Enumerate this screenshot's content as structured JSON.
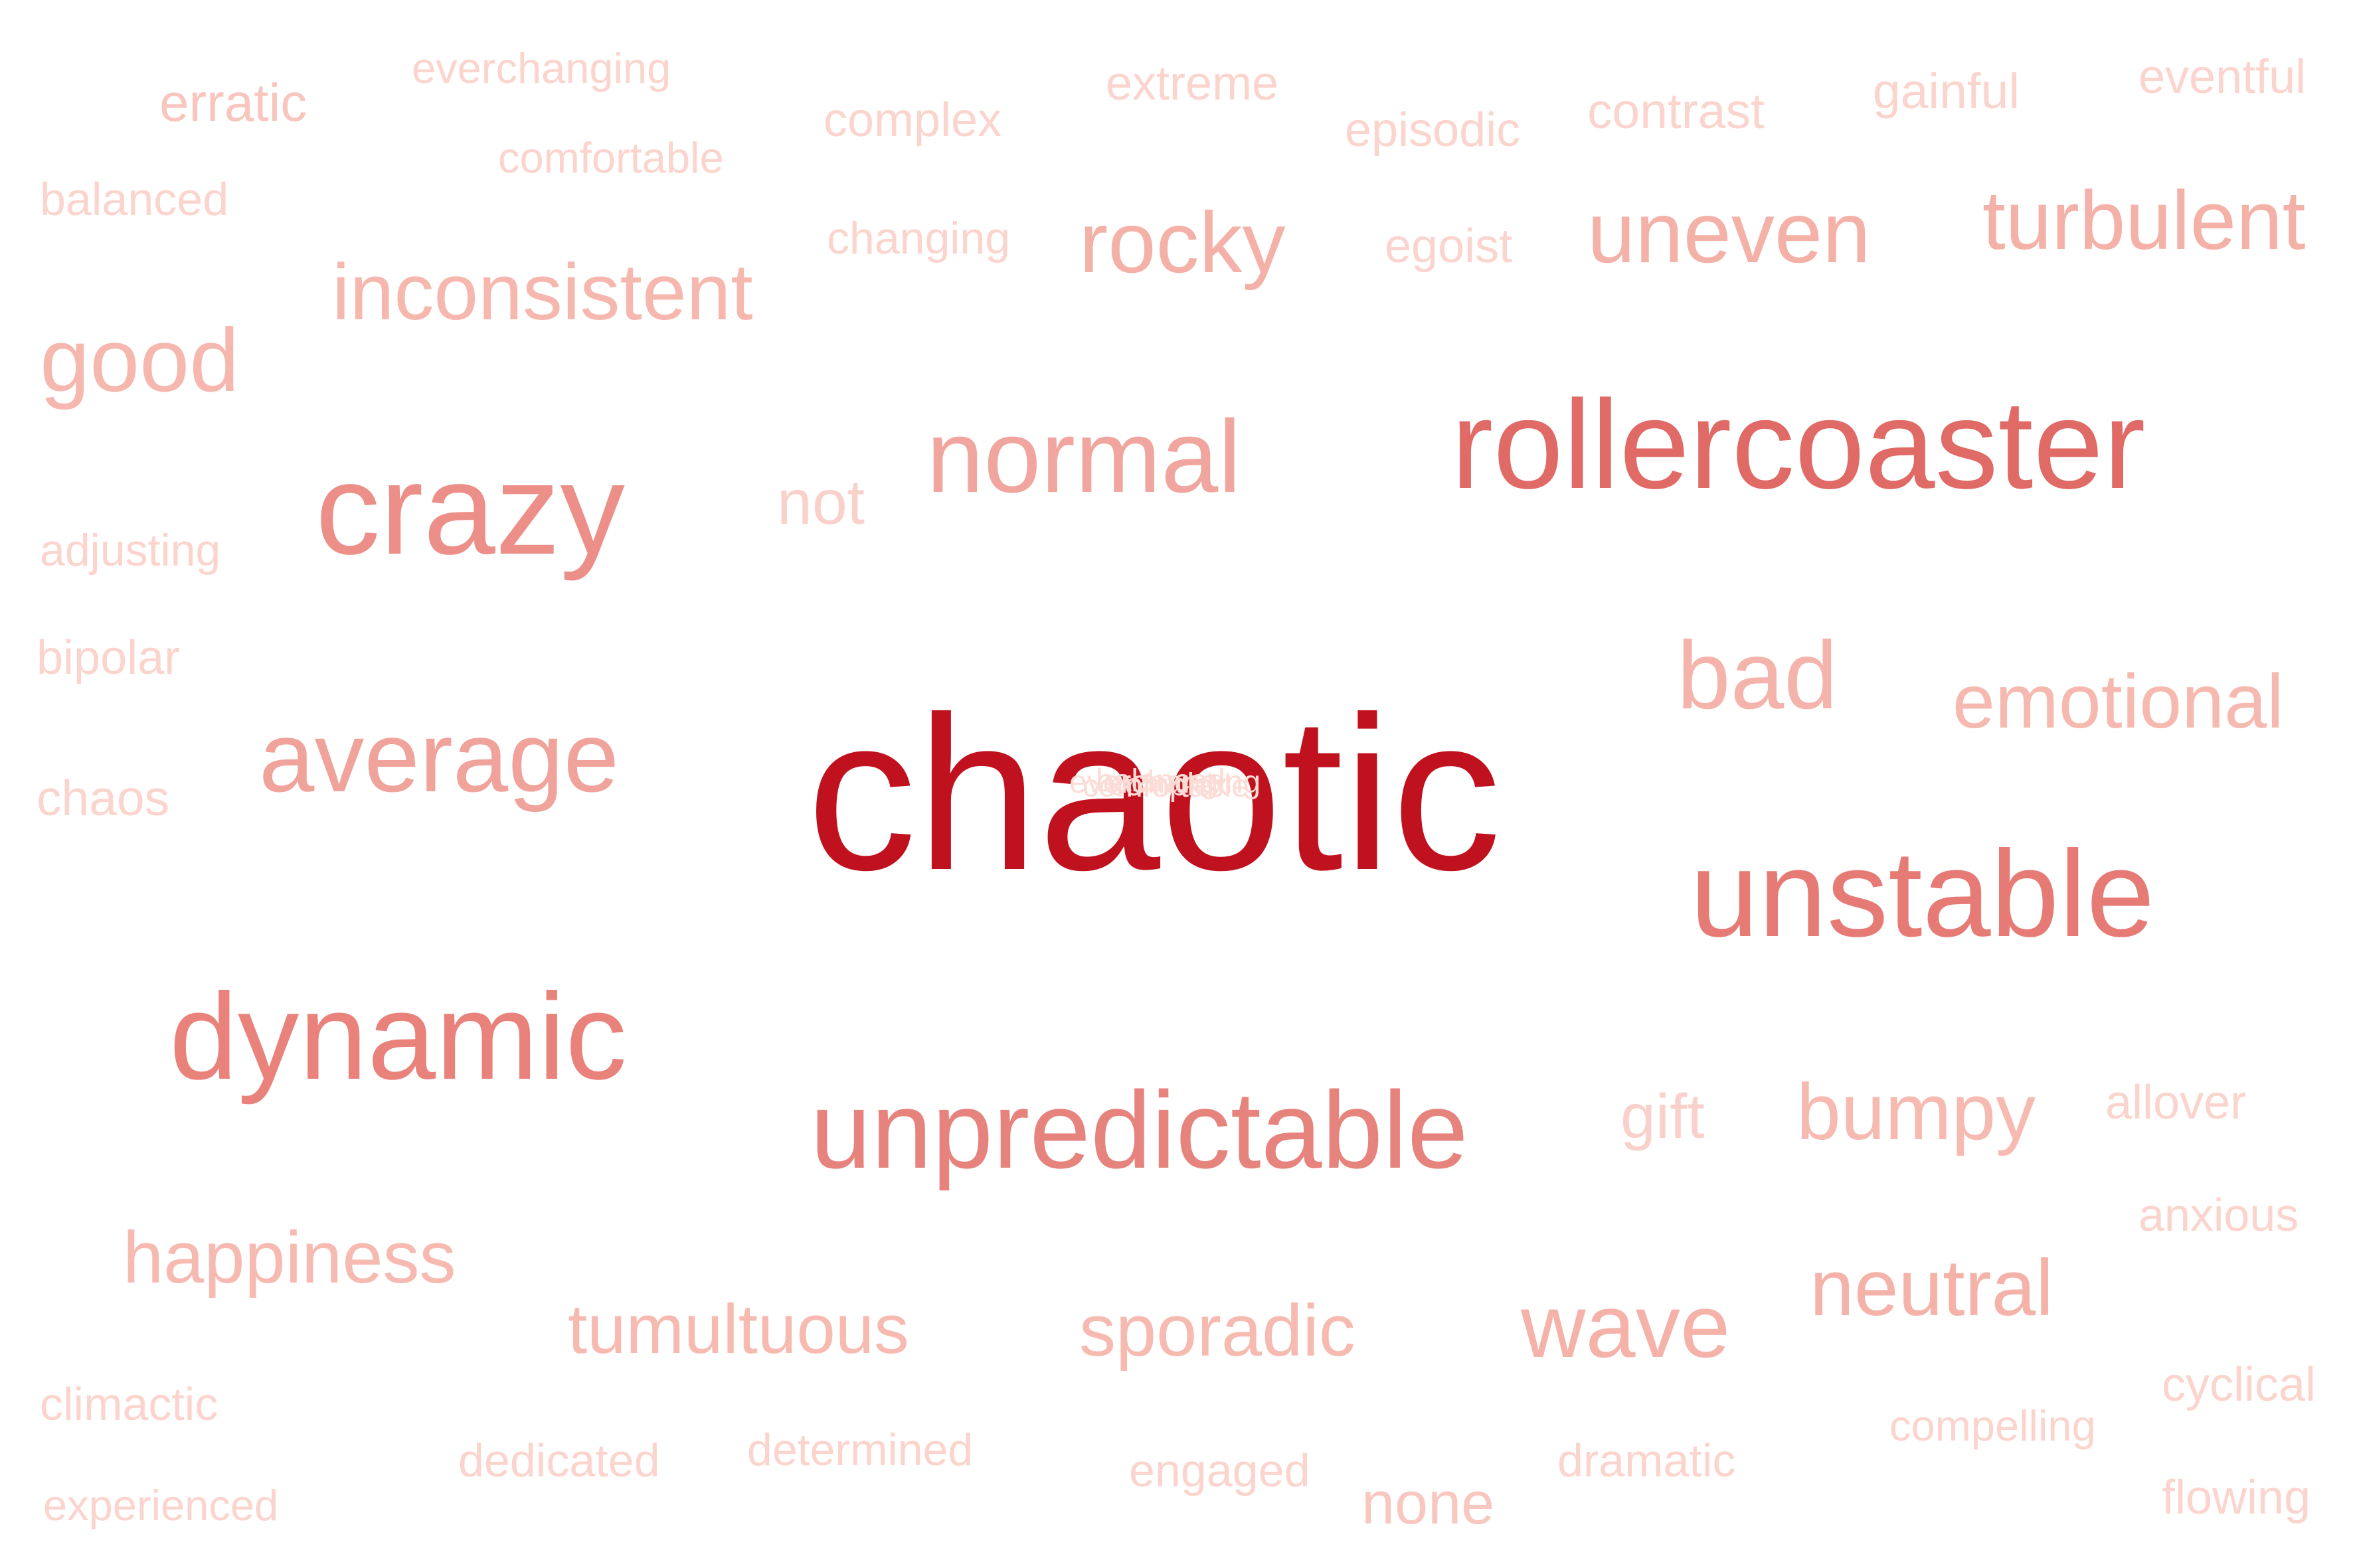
{
  "word_cloud": {
    "words": [
      {
        "id": "chaotic",
        "text": "chaotic",
        "color": "#c0121e"
      },
      {
        "id": "rollercoaster",
        "text": "rollercoaster",
        "color": "#e06a66"
      },
      {
        "id": "unstable",
        "text": "unstable",
        "color": "#e67b76"
      },
      {
        "id": "crazy",
        "text": "crazy",
        "color": "#ec8f88"
      },
      {
        "id": "dynamic",
        "text": "dynamic",
        "color": "#e8827b"
      },
      {
        "id": "unpredictable",
        "text": "unpredictable",
        "color": "#e6837d"
      },
      {
        "id": "normal",
        "text": "normal",
        "color": "#f0a69e"
      },
      {
        "id": "average",
        "text": "average",
        "color": "#f0a39b"
      },
      {
        "id": "bad",
        "text": "bad",
        "color": "#f5b4ab"
      },
      {
        "id": "emotional",
        "text": "emotional",
        "color": "#f6b9b0"
      },
      {
        "id": "uneven",
        "text": "uneven",
        "color": "#f4b1a8"
      },
      {
        "id": "turbulent",
        "text": "turbulent",
        "color": "#f4b1a8"
      },
      {
        "id": "rocky",
        "text": "rocky",
        "color": "#f4b1a8"
      },
      {
        "id": "inconsistent",
        "text": "inconsistent",
        "color": "#f6b8ae"
      },
      {
        "id": "good",
        "text": "good",
        "color": "#f6b8ae"
      },
      {
        "id": "wave",
        "text": "wave",
        "color": "#f4b2a9"
      },
      {
        "id": "neutral",
        "text": "neutral",
        "color": "#f4b2a9"
      },
      {
        "id": "bumpy",
        "text": "bumpy",
        "color": "#f6bab1"
      },
      {
        "id": "sporadic",
        "text": "sporadic",
        "color": "#f6bab1"
      },
      {
        "id": "tumultuous",
        "text": "tumultuous",
        "color": "#f6bab1"
      },
      {
        "id": "happiness",
        "text": "happiness",
        "color": "#f6bab1"
      },
      {
        "id": "not",
        "text": "not",
        "color": "#fad1ca"
      },
      {
        "id": "gift",
        "text": "gift",
        "color": "#fad1ca"
      },
      {
        "id": "none",
        "text": "none",
        "color": "#f8c7bf"
      },
      {
        "id": "erratic",
        "text": "erratic",
        "color": "#f8c6be"
      },
      {
        "id": "everchanging",
        "text": "everchanging",
        "color": "#fbd4cd"
      },
      {
        "id": "comfortable",
        "text": "comfortable",
        "color": "#fbd4cd"
      },
      {
        "id": "balanced",
        "text": "balanced",
        "color": "#fbd4cd"
      },
      {
        "id": "complex",
        "text": "complex",
        "color": "#fbd4cd"
      },
      {
        "id": "changing",
        "text": "changing",
        "color": "#fbd4cd"
      },
      {
        "id": "extreme",
        "text": "extreme",
        "color": "#fbd4cd"
      },
      {
        "id": "episodic",
        "text": "episodic",
        "color": "#fbd4cd"
      },
      {
        "id": "egoist",
        "text": "egoist",
        "color": "#fbd4cd"
      },
      {
        "id": "contrast",
        "text": "contrast",
        "color": "#fbd4cd"
      },
      {
        "id": "gainful",
        "text": "gainful",
        "color": "#fbd4cd"
      },
      {
        "id": "eventful",
        "text": "eventful",
        "color": "#fbd4cd"
      },
      {
        "id": "adjusting",
        "text": "adjusting",
        "color": "#fbd4cd"
      },
      {
        "id": "bipolar",
        "text": "bipolar",
        "color": "#fbd4cd"
      },
      {
        "id": "chaos",
        "text": "chaos",
        "color": "#fbd4cd"
      },
      {
        "id": "allover",
        "text": "allover",
        "color": "#fbd4cd"
      },
      {
        "id": "anxious",
        "text": "anxious",
        "color": "#fbd4cd"
      },
      {
        "id": "cyclical",
        "text": "cyclical",
        "color": "#fbd4cd"
      },
      {
        "id": "flowing",
        "text": "flowing",
        "color": "#fbd4cd"
      },
      {
        "id": "compelling",
        "text": "compelling",
        "color": "#fbd4cd"
      },
      {
        "id": "dramatic",
        "text": "dramatic",
        "color": "#fbd4cd"
      },
      {
        "id": "engaged",
        "text": "engaged",
        "color": "#fbd4cd"
      },
      {
        "id": "determined",
        "text": "determined",
        "color": "#fbd4cd"
      },
      {
        "id": "dedicated",
        "text": "dedicated",
        "color": "#fbd4cd"
      },
      {
        "id": "climactic",
        "text": "climactic",
        "color": "#fbd4cd"
      },
      {
        "id": "experienced",
        "text": "experienced",
        "color": "#fbd4cd"
      }
    ],
    "overlapping_words_color": "#fcdcd6"
  }
}
